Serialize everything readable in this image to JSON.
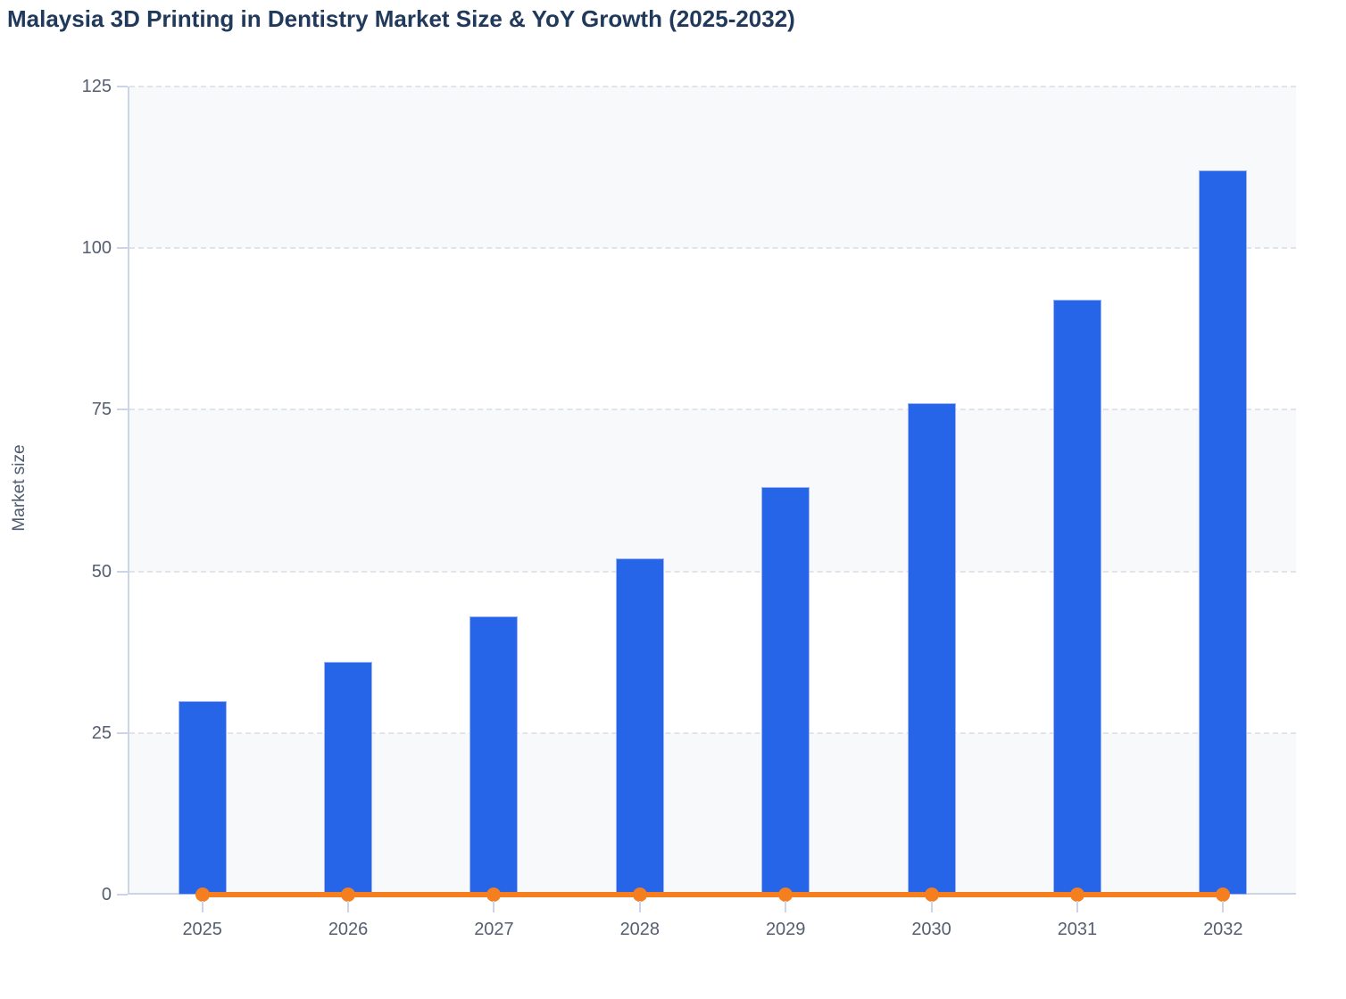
{
  "chart_data": {
    "type": "bar",
    "title": "Malaysia 3D Printing in Dentistry Market Size & YoY Growth (2025-2032)",
    "categories": [
      "2025",
      "2026",
      "2027",
      "2028",
      "2029",
      "2030",
      "2031",
      "2032"
    ],
    "series": [
      {
        "name": "Market size",
        "type": "bar",
        "color": "#2765e8",
        "values": [
          30,
          36,
          43,
          52,
          63,
          76,
          92,
          112
        ]
      },
      {
        "name": "YoY growth",
        "type": "line",
        "color": "#f57e1f",
        "values": [
          0,
          0,
          0,
          0,
          0,
          0,
          0,
          0
        ]
      }
    ],
    "xlabel": "",
    "ylabel": "Market size",
    "ylim": [
      0,
      125
    ],
    "yticks": [
      0,
      25,
      50,
      75,
      100,
      125
    ],
    "grid": "horizontal-dashed",
    "legend": "none",
    "colors": {
      "title": "#21395a",
      "axis_line": "#ccd4e8",
      "gridline": "#e2e4ea",
      "band_light": "#f8f9fb",
      "band_white": "#ffffff",
      "tick_label": "#555e70",
      "bar_border": "#9fb5f3"
    }
  }
}
